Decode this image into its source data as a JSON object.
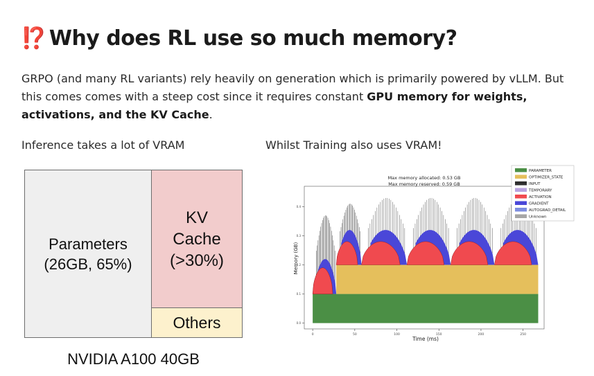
{
  "heading": {
    "emoji": "⁉️",
    "text": "Why does RL use so much memory?"
  },
  "intro": {
    "part1": "GRPO (and many RL variants) rely heavily on generation which is primarily powered by vLLM. But this comes comes with a steep cost since it requires constant ",
    "bold": "GPU memory for weights, activations, and the KV Cache",
    "part2": "."
  },
  "left_caption": "Inference takes a lot of VRAM",
  "right_caption": "Whilst Training also uses VRAM!",
  "treemap": {
    "parameters_line1": "Parameters",
    "parameters_line2": "(26GB, 65%)",
    "kv_line1": "KV",
    "kv_line2": "Cache",
    "kv_line3": "(>30%)",
    "others": "Others",
    "footer": "NVIDIA A100 40GB",
    "colors": {
      "parameters": "#efefef",
      "kv": "#f2cccc",
      "others": "#fdf1cd"
    }
  },
  "chart_data": {
    "type": "area",
    "title_line1": "Max memory allocated: 0.53 GB",
    "title_line2": "Max memory reserved: 0.59 GB",
    "xlabel": "Time (ms)",
    "ylabel": "Memory (GB)",
    "x_ticks": [
      "0",
      "50",
      "100",
      "150",
      "200",
      "250"
    ],
    "y_ticks": [
      "0.0",
      "0.1",
      "0.2",
      "0.3",
      "0.4"
    ],
    "xlim": [
      -10,
      275
    ],
    "ylim": [
      -0.02,
      0.47
    ],
    "legend_position": "top-right",
    "legend": [
      {
        "name": "PARAMETER",
        "color": "#4b8f45"
      },
      {
        "name": "OPTIMIZER_STATE",
        "color": "#e5bf5c"
      },
      {
        "name": "INPUT",
        "color": "#2f2f2f"
      },
      {
        "name": "TEMPORARY",
        "color": "#b9a3e0"
      },
      {
        "name": "ACTIVATION",
        "color": "#f04a4f"
      },
      {
        "name": "GRADIENT",
        "color": "#4a47d8"
      },
      {
        "name": "AUTOGRAD_DETAIL",
        "color": "#7d8ee0"
      },
      {
        "name": "Unknown",
        "color": "#a6a6a6"
      }
    ],
    "parameter_level": 0.1,
    "optimizer_level": 0.2,
    "optimizer_start": 28,
    "steps": [
      {
        "start": 0,
        "end": 28,
        "act_peak": 0.09,
        "grad_peak": 0.12,
        "spike_peak": 0.37
      },
      {
        "start": 28,
        "end": 58,
        "act_peak": 0.08,
        "grad_peak": 0.12,
        "spike_peak": 0.41
      },
      {
        "start": 58,
        "end": 112,
        "act_peak": 0.08,
        "grad_peak": 0.12,
        "spike_peak": 0.43
      },
      {
        "start": 112,
        "end": 164,
        "act_peak": 0.08,
        "grad_peak": 0.12,
        "spike_peak": 0.43
      },
      {
        "start": 164,
        "end": 216,
        "act_peak": 0.08,
        "grad_peak": 0.12,
        "spike_peak": 0.43
      },
      {
        "start": 216,
        "end": 268,
        "act_peak": 0.08,
        "grad_peak": 0.12,
        "spike_peak": 0.43
      }
    ]
  }
}
